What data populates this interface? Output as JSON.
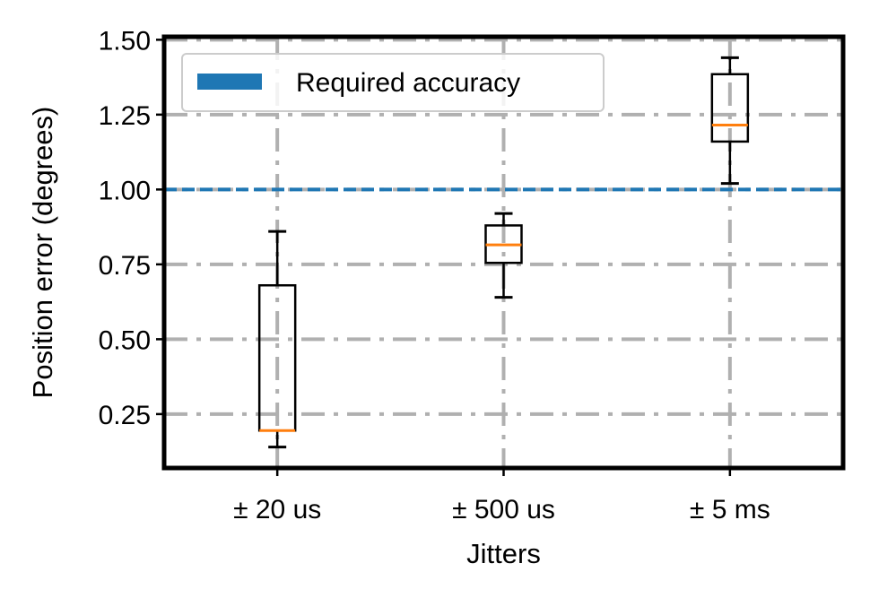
{
  "chart_data": {
    "type": "box",
    "xlabel": "Jitters",
    "ylabel": "Position error (degrees)",
    "categories": [
      "± 20 us",
      "± 500 us",
      "± 5 ms"
    ],
    "ylim": [
      0.07,
      1.51
    ],
    "yticks": [
      0.25,
      0.5,
      0.75,
      1.0,
      1.25,
      1.5
    ],
    "ytick_labels": [
      "0.25",
      "0.50",
      "0.75",
      "1.00",
      "1.25",
      "1.50"
    ],
    "boxes": [
      {
        "category": "± 20 us",
        "whisker_low": 0.14,
        "q1": 0.195,
        "median": 0.195,
        "q3": 0.68,
        "whisker_high": 0.86
      },
      {
        "category": "± 500 us",
        "whisker_low": 0.64,
        "q1": 0.755,
        "median": 0.815,
        "q3": 0.88,
        "whisker_high": 0.92
      },
      {
        "category": "± 5 ms",
        "whisker_low": 1.02,
        "q1": 1.16,
        "median": 1.215,
        "q3": 1.385,
        "whisker_high": 1.44
      }
    ],
    "reference_line": {
      "value": 1.0,
      "label": "Required accuracy",
      "color": "#1f77b4",
      "style": "dashed"
    },
    "legend": {
      "placement": "top-left",
      "entries": [
        "Required accuracy"
      ]
    },
    "grid": true,
    "colors": {
      "box": "#000000",
      "median": "#ff7f0e",
      "grid": "#b0b0b0",
      "reference": "#1f77b4"
    }
  }
}
